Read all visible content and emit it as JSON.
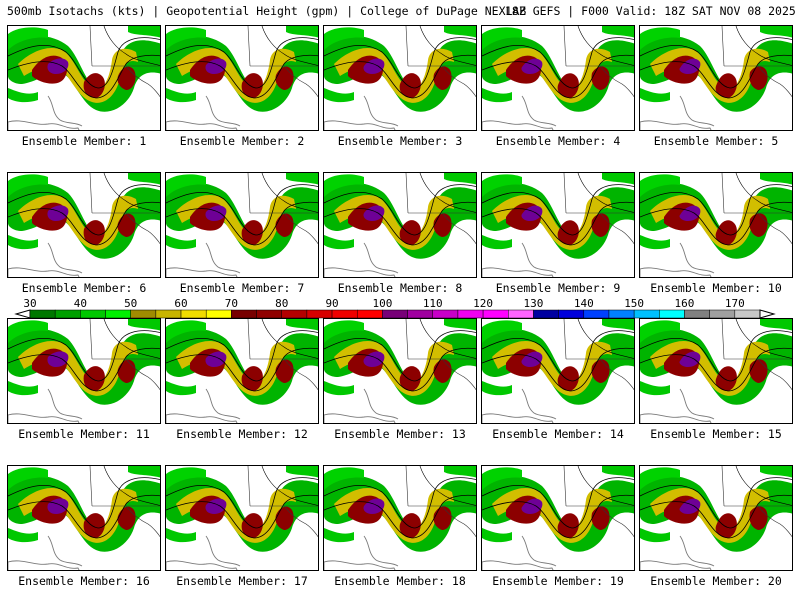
{
  "header": {
    "left_title": "500mb Isotachs (kts) | Geopotential Height (gpm) | College of DuPage NEXLAB",
    "right_title": "18Z GEFS | F000 Valid: 18Z SAT NOV 08 2025"
  },
  "legend": {
    "ticks": [
      "30",
      "40",
      "50",
      "60",
      "70",
      "80",
      "90",
      "100",
      "110",
      "120",
      "130",
      "140",
      "150",
      "160",
      "170"
    ],
    "colors": [
      "#007800",
      "#00a000",
      "#00c800",
      "#00f000",
      "#a08c00",
      "#c8b400",
      "#f0dc00",
      "#ffff00",
      "#780000",
      "#900000",
      "#b40000",
      "#d70000",
      "#f00000",
      "#ff0000",
      "#780078",
      "#a000a0",
      "#c800c8",
      "#f000f0",
      "#ff00ff",
      "#ff64ff",
      "#0000a0",
      "#0000dc",
      "#0040ff",
      "#0080ff",
      "#00c0ff",
      "#00ffff",
      "#808080",
      "#a0a0a0",
      "#c8c8c8"
    ]
  },
  "members": [
    {
      "label": "Ensemble Member: 1"
    },
    {
      "label": "Ensemble Member: 2"
    },
    {
      "label": "Ensemble Member: 3"
    },
    {
      "label": "Ensemble Member: 4"
    },
    {
      "label": "Ensemble Member: 5"
    },
    {
      "label": "Ensemble Member: 6"
    },
    {
      "label": "Ensemble Member: 7"
    },
    {
      "label": "Ensemble Member: 8"
    },
    {
      "label": "Ensemble Member: 9"
    },
    {
      "label": "Ensemble Member: 10"
    },
    {
      "label": "Ensemble Member: 11"
    },
    {
      "label": "Ensemble Member: 12"
    },
    {
      "label": "Ensemble Member: 13"
    },
    {
      "label": "Ensemble Member: 14"
    },
    {
      "label": "Ensemble Member: 15"
    },
    {
      "label": "Ensemble Member: 16"
    },
    {
      "label": "Ensemble Member: 17"
    },
    {
      "label": "Ensemble Member: 18"
    },
    {
      "label": "Ensemble Member: 19"
    },
    {
      "label": "Ensemble Member: 20"
    }
  ]
}
